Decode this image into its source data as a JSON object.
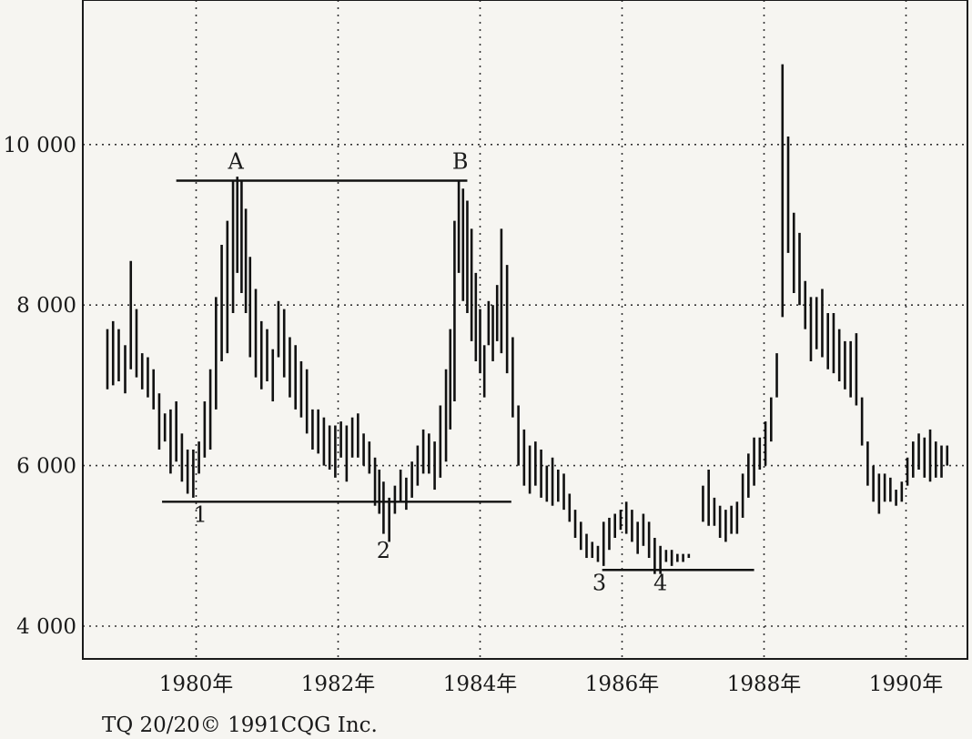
{
  "chart_data": {
    "type": "bar",
    "subtype": "ohlc-range",
    "title": "",
    "xlabel": "",
    "ylabel": "",
    "ylim": [
      3600,
      11950
    ],
    "xlim": [
      1978.8,
      1991.1
    ],
    "grid": true,
    "y_ticks": [
      {
        "value": 4000,
        "label": "4 000"
      },
      {
        "value": 6000,
        "label": "6 000"
      },
      {
        "value": 8000,
        "label": "8 000"
      },
      {
        "value": 10000,
        "label": "10 000"
      }
    ],
    "x_ticks": [
      {
        "value": 1980,
        "label": "1980年"
      },
      {
        "value": 1982,
        "label": "1982年"
      },
      {
        "value": 1984,
        "label": "1984年"
      },
      {
        "value": 1986,
        "label": "1986年"
      },
      {
        "value": 1988,
        "label": "1988年"
      },
      {
        "value": 1990,
        "label": "1990年"
      }
    ],
    "series": [
      {
        "bars": [
          [
            1978.75,
            6950,
            7700
          ],
          [
            1978.83,
            7000,
            7800
          ],
          [
            1978.91,
            7050,
            7700
          ],
          [
            1979.0,
            6900,
            7500
          ],
          [
            1979.08,
            7200,
            8550
          ],
          [
            1979.16,
            7100,
            7950
          ],
          [
            1979.24,
            6950,
            7400
          ],
          [
            1979.32,
            6850,
            7350
          ],
          [
            1979.4,
            6700,
            7200
          ],
          [
            1979.48,
            6200,
            6900
          ],
          [
            1979.56,
            6300,
            6650
          ],
          [
            1979.64,
            5900,
            6700
          ],
          [
            1979.72,
            6050,
            6800
          ],
          [
            1979.8,
            5800,
            6400
          ],
          [
            1979.88,
            5650,
            6200
          ],
          [
            1979.96,
            5600,
            6200
          ],
          [
            1980.04,
            5900,
            6300
          ],
          [
            1980.12,
            6100,
            6800
          ],
          [
            1980.2,
            6200,
            7200
          ],
          [
            1980.28,
            6700,
            8100
          ],
          [
            1980.36,
            7300,
            8750
          ],
          [
            1980.44,
            7400,
            9050
          ],
          [
            1980.52,
            7900,
            9550
          ],
          [
            1980.58,
            8400,
            9600
          ],
          [
            1980.64,
            8150,
            9550
          ],
          [
            1980.7,
            7900,
            9200
          ],
          [
            1980.76,
            7350,
            8600
          ],
          [
            1980.84,
            7100,
            8200
          ],
          [
            1980.92,
            6950,
            7800
          ],
          [
            1981.0,
            7050,
            7700
          ],
          [
            1981.08,
            6800,
            7450
          ],
          [
            1981.16,
            7350,
            8050
          ],
          [
            1981.24,
            7100,
            7950
          ],
          [
            1981.32,
            6850,
            7600
          ],
          [
            1981.4,
            6700,
            7500
          ],
          [
            1981.48,
            6600,
            7300
          ],
          [
            1981.56,
            6400,
            7200
          ],
          [
            1981.64,
            6200,
            6700
          ],
          [
            1981.72,
            6150,
            6700
          ],
          [
            1981.8,
            6000,
            6600
          ],
          [
            1981.88,
            5950,
            6500
          ],
          [
            1981.96,
            5850,
            6500
          ],
          [
            1982.04,
            6100,
            6550
          ],
          [
            1982.12,
            5800,
            6500
          ],
          [
            1982.2,
            6100,
            6600
          ],
          [
            1982.28,
            6100,
            6650
          ],
          [
            1982.36,
            6000,
            6400
          ],
          [
            1982.44,
            5900,
            6300
          ],
          [
            1982.52,
            5500,
            6100
          ],
          [
            1982.58,
            5400,
            5950
          ],
          [
            1982.64,
            5150,
            5800
          ],
          [
            1982.72,
            5050,
            5600
          ],
          [
            1982.8,
            5400,
            5750
          ],
          [
            1982.88,
            5550,
            5950
          ],
          [
            1982.96,
            5450,
            5850
          ],
          [
            1983.04,
            5600,
            6050
          ],
          [
            1983.12,
            5750,
            6250
          ],
          [
            1983.2,
            5900,
            6450
          ],
          [
            1983.28,
            5900,
            6400
          ],
          [
            1983.36,
            5700,
            6300
          ],
          [
            1983.44,
            5850,
            6750
          ],
          [
            1983.52,
            6050,
            7200
          ],
          [
            1983.58,
            6450,
            7700
          ],
          [
            1983.64,
            6800,
            9050
          ],
          [
            1983.7,
            8400,
            9550
          ],
          [
            1983.76,
            8050,
            9450
          ],
          [
            1983.82,
            7900,
            9300
          ],
          [
            1983.88,
            7550,
            8950
          ],
          [
            1983.94,
            7300,
            8400
          ],
          [
            1984.0,
            7150,
            7950
          ],
          [
            1984.06,
            6850,
            7500
          ],
          [
            1984.12,
            7500,
            8050
          ],
          [
            1984.18,
            7300,
            8000
          ],
          [
            1984.24,
            7550,
            8250
          ],
          [
            1984.3,
            7400,
            8950
          ],
          [
            1984.38,
            7150,
            8500
          ],
          [
            1984.46,
            6600,
            7600
          ],
          [
            1984.54,
            6000,
            6750
          ],
          [
            1984.62,
            5750,
            6450
          ],
          [
            1984.7,
            5650,
            6250
          ],
          [
            1984.78,
            5750,
            6300
          ],
          [
            1984.86,
            5600,
            6200
          ],
          [
            1984.94,
            5550,
            6000
          ],
          [
            1985.02,
            5500,
            6100
          ],
          [
            1985.1,
            5550,
            5950
          ],
          [
            1985.18,
            5450,
            5900
          ],
          [
            1985.26,
            5300,
            5650
          ],
          [
            1985.34,
            5100,
            5450
          ],
          [
            1985.42,
            4950,
            5300
          ],
          [
            1985.5,
            4850,
            5150
          ],
          [
            1985.58,
            4850,
            5050
          ],
          [
            1985.66,
            4800,
            5000
          ],
          [
            1985.74,
            4750,
            5300
          ],
          [
            1985.82,
            4950,
            5350
          ],
          [
            1985.9,
            5100,
            5400
          ],
          [
            1985.98,
            5200,
            5450
          ],
          [
            1986.06,
            5150,
            5550
          ],
          [
            1986.14,
            5050,
            5450
          ],
          [
            1986.22,
            4900,
            5300
          ],
          [
            1986.3,
            5000,
            5400
          ],
          [
            1986.38,
            4850,
            5300
          ],
          [
            1986.46,
            4650,
            5100
          ],
          [
            1986.54,
            4650,
            5000
          ],
          [
            1986.62,
            4800,
            4950
          ],
          [
            1986.7,
            4750,
            4950
          ],
          [
            1986.78,
            4800,
            4900
          ],
          [
            1986.86,
            4800,
            4900
          ],
          [
            1986.94,
            4850,
            4900
          ],
          [
            1987.14,
            5300,
            5750
          ],
          [
            1987.22,
            5250,
            5950
          ],
          [
            1987.3,
            5250,
            5600
          ],
          [
            1987.38,
            5100,
            5500
          ],
          [
            1987.46,
            5050,
            5450
          ],
          [
            1987.54,
            5150,
            5500
          ],
          [
            1987.62,
            5150,
            5550
          ],
          [
            1987.7,
            5350,
            5900
          ],
          [
            1987.78,
            5600,
            6150
          ],
          [
            1987.86,
            5750,
            6350
          ],
          [
            1987.94,
            5950,
            6350
          ],
          [
            1988.02,
            6000,
            6550
          ],
          [
            1988.1,
            6300,
            6850
          ],
          [
            1988.18,
            6850,
            7400
          ],
          [
            1988.26,
            7850,
            11000
          ],
          [
            1988.34,
            8650,
            10100
          ],
          [
            1988.42,
            8150,
            9150
          ],
          [
            1988.5,
            8000,
            8900
          ],
          [
            1988.58,
            7700,
            8300
          ],
          [
            1988.66,
            7300,
            8100
          ],
          [
            1988.74,
            7450,
            8100
          ],
          [
            1988.82,
            7350,
            8200
          ],
          [
            1988.9,
            7200,
            7900
          ],
          [
            1988.98,
            7150,
            7900
          ],
          [
            1989.06,
            7050,
            7700
          ],
          [
            1989.14,
            6950,
            7550
          ],
          [
            1989.22,
            6850,
            7550
          ],
          [
            1989.3,
            6750,
            7650
          ],
          [
            1989.38,
            6250,
            6850
          ],
          [
            1989.46,
            5750,
            6300
          ],
          [
            1989.54,
            5550,
            6000
          ],
          [
            1989.62,
            5400,
            5900
          ],
          [
            1989.7,
            5550,
            5900
          ],
          [
            1989.78,
            5550,
            5850
          ],
          [
            1989.86,
            5500,
            5700
          ],
          [
            1989.94,
            5550,
            5800
          ],
          [
            1990.02,
            5750,
            6100
          ],
          [
            1990.1,
            5850,
            6300
          ],
          [
            1990.18,
            5950,
            6400
          ],
          [
            1990.26,
            5850,
            6350
          ],
          [
            1990.34,
            5800,
            6450
          ],
          [
            1990.42,
            5850,
            6300
          ],
          [
            1990.5,
            5850,
            6250
          ],
          [
            1990.58,
            6000,
            6250
          ]
        ]
      }
    ],
    "reference_lines": [
      {
        "label": "A-B",
        "y": 9550,
        "x_start": 1979.72,
        "x_end": 1983.82
      },
      {
        "label": "1-2",
        "y": 5550,
        "x_start": 1979.52,
        "x_end": 1984.44
      },
      {
        "label": "3-4",
        "y": 4700,
        "x_start": 1985.72,
        "x_end": 1987.86
      }
    ],
    "annotations": [
      {
        "text": "A",
        "x": 1980.56,
        "y": 9700
      },
      {
        "text": "B",
        "x": 1983.72,
        "y": 9700
      },
      {
        "text": "1",
        "x": 1980.06,
        "y": 5300
      },
      {
        "text": "2",
        "x": 1982.64,
        "y": 4850
      },
      {
        "text": "3",
        "x": 1985.68,
        "y": 4450
      },
      {
        "text": "4",
        "x": 1986.54,
        "y": 4450
      }
    ]
  },
  "footer": {
    "credit": "TQ 20/20© 1991CQG Inc."
  }
}
